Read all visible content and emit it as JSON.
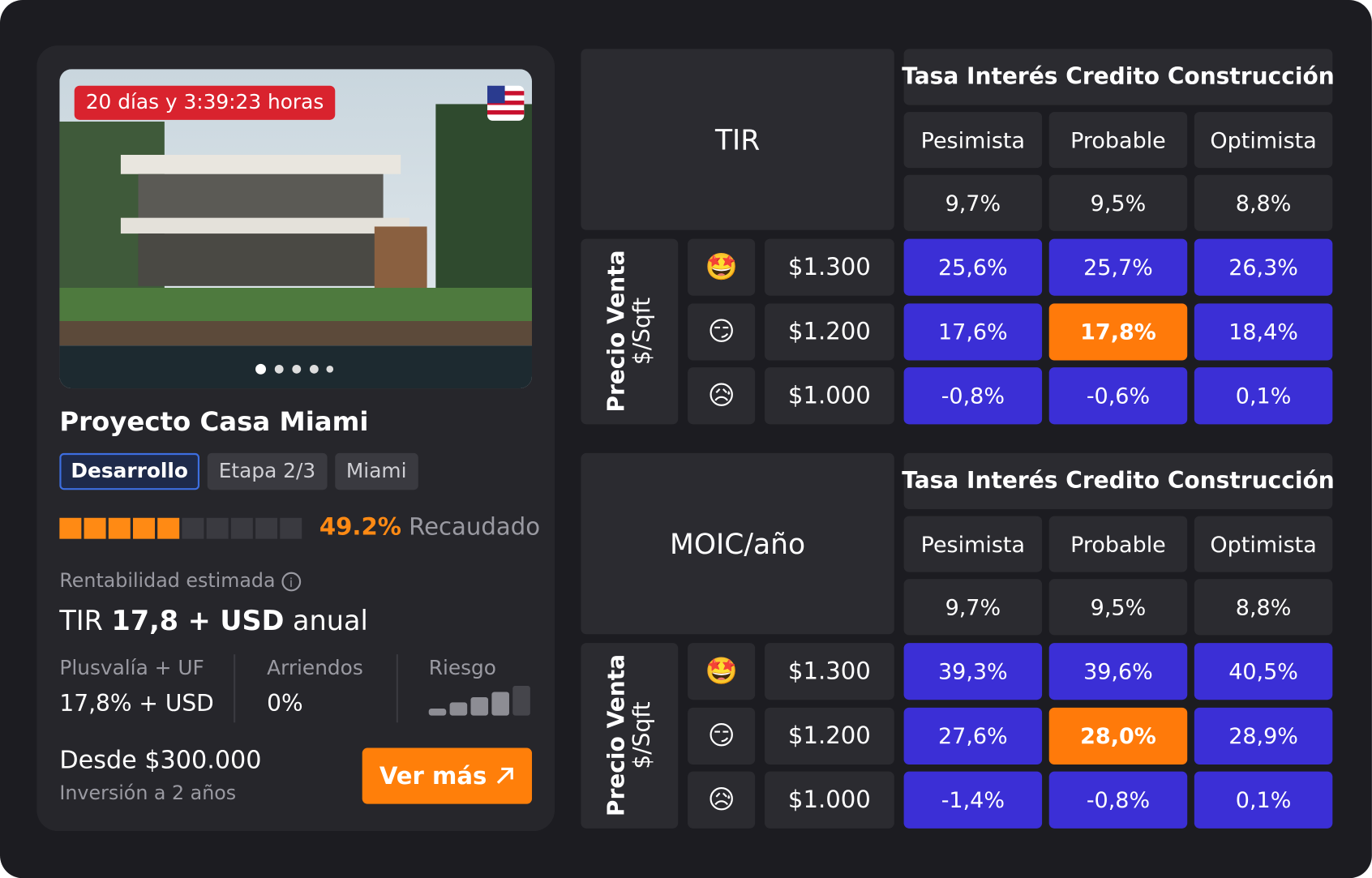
{
  "card": {
    "timer": "20 días y 3:39:23 horas",
    "title": "Proyecto Casa Miami",
    "tags": [
      "Desarrollo",
      "Etapa 2/3",
      "Miami"
    ],
    "progress": {
      "value": 49.2,
      "label": "49.2%"
    },
    "progress_text": "Recaudado",
    "rent_label": "Rentabilidad estimada",
    "rent_prefix": "TIR",
    "rent_bold": "17,8 + USD",
    "rent_suffix": "anual",
    "stats": [
      {
        "label": "Plusvalía + UF",
        "value": "17,8% + USD"
      },
      {
        "label": "Arriendos",
        "value": "0%"
      },
      {
        "label": "Riesgo",
        "value": null
      }
    ],
    "price": "Desde $300.000",
    "term": "Inversión a 2 años",
    "button": "Ver más"
  },
  "tables": [
    {
      "corner": "TIR",
      "header": "Tasa Interés Credito Construcción",
      "columns": [
        "Pesimista",
        "Probable",
        "Optimista"
      ],
      "rates": [
        "9,7%",
        "9,5%",
        "8,8%"
      ],
      "row_title": "Precio Venta",
      "row_unit": "$/Sqft",
      "highlight": [
        1,
        1
      ],
      "rows": [
        {
          "emoji": "🤩",
          "price": "$1.300",
          "values": [
            "25,6%",
            "25,7%",
            "26,3%"
          ]
        },
        {
          "emoji": "😏",
          "price": "$1.200",
          "values": [
            "17,6%",
            "17,8%",
            "18,4%"
          ]
        },
        {
          "emoji": "😥",
          "price": "$1.000",
          "values": [
            "-0,8%",
            "-0,6%",
            "0,1%"
          ]
        }
      ]
    },
    {
      "corner": "MOIC/año",
      "header": "Tasa Interés Credito Construcción",
      "columns": [
        "Pesimista",
        "Probable",
        "Optimista"
      ],
      "rates": [
        "9,7%",
        "9,5%",
        "8,8%"
      ],
      "row_title": "Precio Venta",
      "row_unit": "$/Sqft",
      "highlight": [
        1,
        1
      ],
      "rows": [
        {
          "emoji": "🤩",
          "price": "$1.300",
          "values": [
            "39,3%",
            "39,6%",
            "40,5%"
          ]
        },
        {
          "emoji": "😏",
          "price": "$1.200",
          "values": [
            "27,6%",
            "28,0%",
            "28,9%"
          ]
        },
        {
          "emoji": "😥",
          "price": "$1.000",
          "values": [
            "-1,4%",
            "-0,8%",
            "0,1%"
          ]
        }
      ]
    }
  ]
}
